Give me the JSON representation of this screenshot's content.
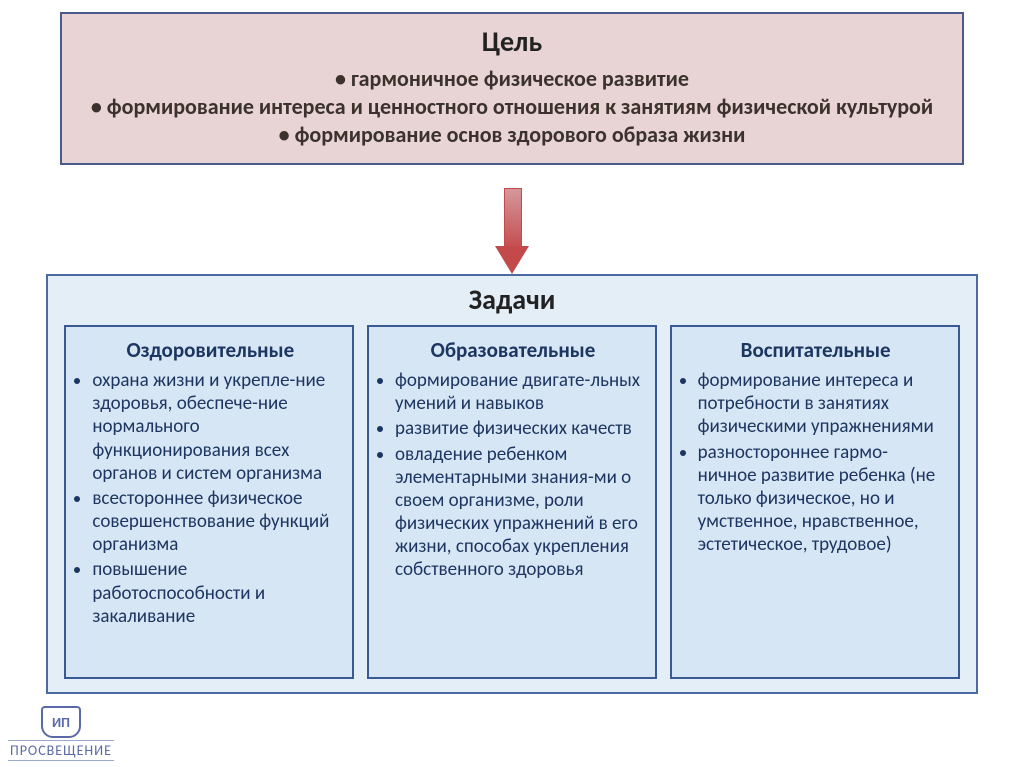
{
  "colors": {
    "goal_bg": "#e8d3d5",
    "goal_border": "#4a5a8a",
    "goal_text": "#3a322b",
    "arrow_fill": "#c4494b",
    "arrow_shaft_top": "#d4989a",
    "tasks_outer_bg": "#e4eef7",
    "tasks_outer_border": "#4a6aa0",
    "card_bg": "#d7e6f4",
    "card_border": "#3a5a94",
    "card_text": "#1c3661",
    "title_text": "#222222",
    "logo_color": "#5a6aa8"
  },
  "fontsizes": {
    "goal_title": 28,
    "goal_body": 22,
    "tasks_title": 28,
    "card_title": 21,
    "card_body": 19,
    "card_line_height": 1.22
  },
  "goal": {
    "title": "Цель",
    "lines": [
      "• гармоничное физическое развитие",
      "• формирование интереса и ценностного отношения к занятиям физической культурой",
      "• формирование основ здорового образа жизни"
    ]
  },
  "tasks": {
    "title": "Задачи",
    "cards": [
      {
        "title": "Оздоровительные",
        "items": [
          "охрана жизни и укрепле-ние здоровья, обеспече-ние нормального функционирования всех органов и систем организма",
          "всестороннее физическое совершенствование функций организма",
          "повышение работоспособности и закаливание"
        ]
      },
      {
        "title": "Образовательные",
        "items": [
          "формирование двигате-льных умений и навыков",
          "развитие физических качеств",
          "овладение ребенком элементарными знания-ми о своем организме, роли физических упражнений в его жизни, способах укрепления собственного здоровья"
        ]
      },
      {
        "title": "Воспитательные",
        "items": [
          "формирование интереса и потребности в занятиях физическими упражнениями",
          "разностороннее  гармо-ничное развитие ребенка (не только физическое, но и умственное, нравственное, эстетическое, трудовое)"
        ]
      }
    ]
  },
  "logo": {
    "mark": "ИП",
    "text": "ПРОСВЕЩЕНИЕ"
  }
}
